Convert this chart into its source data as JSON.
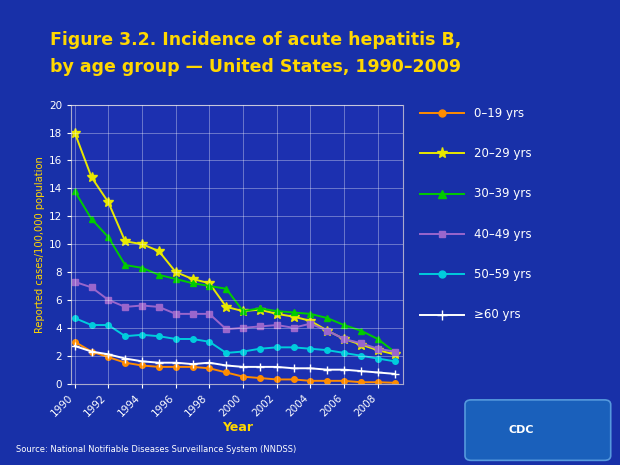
{
  "title_line1": "Figure 3.2. Incidence of acute hepatitis B,",
  "title_line2": "by age group — United States, 1990–2009",
  "xlabel": "Year",
  "ylabel": "Reported cases/100,000 population",
  "source": "Source: National Notifiable Diseases Surveillance System (NNDSS)",
  "bg_dark": "#0a1f8c",
  "bg_mid": "#1a35b5",
  "bg_inner": "#1a2fa8",
  "plot_bg": "#1c30b0",
  "title_color": "#ffd700",
  "tick_label_color": "#ffd700",
  "axis_label_color": "#ffd700",
  "years": [
    1990,
    1991,
    1992,
    1993,
    1994,
    1995,
    1996,
    1997,
    1998,
    1999,
    2000,
    2001,
    2002,
    2003,
    2004,
    2005,
    2006,
    2007,
    2008,
    2009
  ],
  "series": [
    {
      "label": "0–19 yrs",
      "color": "#ff8c00",
      "marker": "o",
      "markersize": 4,
      "values": [
        3.0,
        2.3,
        1.9,
        1.5,
        1.3,
        1.2,
        1.2,
        1.2,
        1.1,
        0.8,
        0.5,
        0.4,
        0.3,
        0.3,
        0.2,
        0.2,
        0.2,
        0.1,
        0.1,
        0.06
      ]
    },
    {
      "label": "20–29 yrs",
      "color": "#e8e800",
      "marker": "*",
      "markersize": 7,
      "values": [
        18.0,
        14.8,
        13.0,
        10.2,
        10.0,
        9.5,
        8.0,
        7.5,
        7.2,
        5.5,
        5.2,
        5.3,
        5.0,
        4.8,
        4.5,
        3.8,
        3.2,
        2.8,
        2.4,
        2.1
      ]
    },
    {
      "label": "30–39 yrs",
      "color": "#00cc00",
      "marker": "^",
      "markersize": 5,
      "values": [
        13.8,
        11.8,
        10.5,
        8.5,
        8.3,
        7.8,
        7.5,
        7.2,
        7.0,
        6.8,
        5.2,
        5.4,
        5.2,
        5.1,
        5.0,
        4.7,
        4.2,
        3.8,
        3.2,
        2.28
      ]
    },
    {
      "label": "40–49 yrs",
      "color": "#9966cc",
      "marker": "s",
      "markersize": 4,
      "values": [
        7.3,
        6.9,
        6.0,
        5.5,
        5.6,
        5.5,
        5.0,
        5.0,
        5.0,
        3.9,
        4.0,
        4.1,
        4.2,
        4.0,
        4.3,
        3.8,
        3.2,
        2.9,
        2.5,
        2.3
      ]
    },
    {
      "label": "50–59 yrs",
      "color": "#00ccdd",
      "marker": "o",
      "markersize": 4,
      "values": [
        4.7,
        4.2,
        4.2,
        3.4,
        3.5,
        3.4,
        3.2,
        3.2,
        3.0,
        2.2,
        2.3,
        2.5,
        2.6,
        2.6,
        2.5,
        2.4,
        2.2,
        2.0,
        1.8,
        1.6
      ]
    },
    {
      "label": "≥60 yrs",
      "color": "#ffffff",
      "marker": "+",
      "markersize": 6,
      "values": [
        2.7,
        2.3,
        2.1,
        1.8,
        1.6,
        1.5,
        1.5,
        1.4,
        1.5,
        1.3,
        1.2,
        1.2,
        1.2,
        1.1,
        1.1,
        1.0,
        1.0,
        0.9,
        0.8,
        0.7
      ]
    }
  ],
  "ylim": [
    0,
    20
  ],
  "yticks": [
    0,
    2,
    4,
    6,
    8,
    10,
    12,
    14,
    16,
    18,
    20
  ],
  "xticks": [
    1990,
    1992,
    1994,
    1996,
    1998,
    2000,
    2002,
    2004,
    2006,
    2008
  ]
}
